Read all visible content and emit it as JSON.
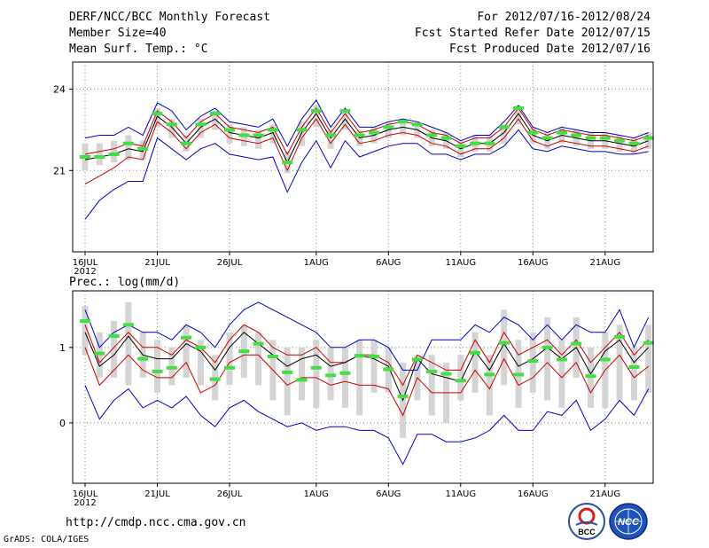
{
  "header": {
    "title": "DERF/NCC/BCC Monthly Forecast",
    "member_size": "Member Size=40",
    "variable1": "Mean Surf. Temp.: °C",
    "period": "For 2012/07/16-2012/08/24",
    "started": "Fcst Started Refer Date 2012/07/15",
    "produced": "Fcst Produced Date 2012/07/16"
  },
  "footer": {
    "url": "http://cmdp.ncc.cma.gov.cn",
    "credit": "GrADS: COLA/IGES"
  },
  "logos": {
    "left_text": "BCC",
    "right_text": "NCC"
  },
  "colors": {
    "envelope": "#0000cc",
    "inner": "#cc0000",
    "mean": "#000000",
    "bar": "#d4d4d4",
    "marker": "#44dd44",
    "grid": "#888888"
  },
  "chart_data": [
    {
      "type": "line",
      "title": "Mean Surf. Temp.: °C",
      "x_tick_labels": [
        "16JUL",
        "21JUL",
        "26JUL",
        "1AUG",
        "6AUG",
        "11AUG",
        "16AUG",
        "21AUG"
      ],
      "x_tick_days": [
        1,
        6,
        11,
        17,
        22,
        27,
        32,
        37
      ],
      "x_sublabel": "2012",
      "ylim": [
        18.0,
        25.0
      ],
      "y_ticks": [
        21,
        24
      ],
      "days": [
        1,
        2,
        3,
        4,
        5,
        6,
        7,
        8,
        9,
        10,
        11,
        12,
        13,
        14,
        15,
        16,
        17,
        18,
        19,
        20,
        21,
        22,
        23,
        24,
        25,
        26,
        27,
        28,
        29,
        30,
        31,
        32,
        33,
        34,
        35,
        36,
        37,
        38,
        39,
        40
      ],
      "series": [
        {
          "name": "max",
          "values": [
            22.2,
            22.3,
            22.3,
            22.6,
            22.3,
            23.5,
            23.2,
            22.5,
            23.0,
            23.3,
            22.8,
            22.7,
            22.6,
            22.9,
            21.9,
            22.9,
            23.6,
            22.6,
            23.3,
            22.6,
            22.6,
            22.8,
            22.9,
            22.8,
            22.6,
            22.4,
            22.1,
            22.3,
            22.3,
            22.8,
            23.4,
            22.6,
            22.4,
            22.6,
            22.5,
            22.4,
            22.4,
            22.3,
            22.2,
            22.4
          ]
        },
        {
          "name": "p90",
          "values": [
            21.6,
            21.7,
            21.8,
            22.0,
            21.9,
            23.2,
            22.8,
            22.2,
            22.8,
            23.1,
            22.6,
            22.5,
            22.4,
            22.6,
            21.6,
            22.6,
            23.3,
            22.4,
            23.1,
            22.4,
            22.5,
            22.7,
            22.8,
            22.7,
            22.4,
            22.3,
            22.0,
            22.2,
            22.2,
            22.6,
            23.3,
            22.5,
            22.3,
            22.5,
            22.4,
            22.3,
            22.3,
            22.2,
            22.1,
            22.3
          ]
        },
        {
          "name": "mean",
          "values": [
            21.4,
            21.5,
            21.6,
            21.8,
            21.7,
            23.0,
            22.6,
            22.0,
            22.6,
            22.9,
            22.4,
            22.3,
            22.2,
            22.4,
            21.3,
            22.4,
            23.1,
            22.2,
            22.9,
            22.2,
            22.3,
            22.5,
            22.6,
            22.5,
            22.2,
            22.1,
            21.8,
            22.0,
            22.0,
            22.4,
            23.1,
            22.3,
            22.1,
            22.3,
            22.2,
            22.1,
            22.1,
            22.0,
            21.9,
            22.1
          ]
        },
        {
          "name": "p10",
          "values": [
            20.5,
            20.8,
            21.1,
            21.5,
            21.4,
            22.8,
            22.4,
            21.8,
            22.4,
            22.7,
            22.2,
            22.1,
            22.0,
            22.2,
            21.0,
            22.2,
            22.9,
            22.0,
            22.7,
            22.0,
            22.1,
            22.3,
            22.4,
            22.3,
            22.0,
            21.9,
            21.6,
            21.8,
            21.8,
            22.2,
            22.9,
            22.1,
            21.9,
            22.1,
            22.0,
            21.9,
            21.9,
            21.8,
            21.7,
            21.9
          ]
        },
        {
          "name": "min",
          "values": [
            19.2,
            19.9,
            20.3,
            20.6,
            20.6,
            22.2,
            21.8,
            21.4,
            21.8,
            22.0,
            21.6,
            21.5,
            21.4,
            21.5,
            20.2,
            21.3,
            22.1,
            21.1,
            22.1,
            21.5,
            21.7,
            21.9,
            22.0,
            22.0,
            21.6,
            21.6,
            21.4,
            21.6,
            21.6,
            21.9,
            22.5,
            21.8,
            21.7,
            21.9,
            21.8,
            21.7,
            21.7,
            21.6,
            21.6,
            21.7
          ]
        }
      ],
      "bars_low": [
        21.0,
        21.2,
        21.3,
        21.4,
        21.4,
        22.6,
        22.2,
        21.7,
        22.2,
        22.5,
        22.0,
        21.9,
        21.8,
        22.0,
        20.9,
        21.9,
        22.6,
        21.8,
        22.5,
        21.9,
        22.0,
        22.2,
        22.3,
        22.2,
        21.9,
        21.8,
        21.5,
        21.7,
        21.7,
        22.0,
        22.7,
        22.0,
        21.8,
        22.0,
        21.9,
        21.8,
        21.8,
        21.7,
        21.6,
        21.8
      ],
      "bars_high": [
        22.0,
        22.0,
        22.1,
        22.3,
        22.1,
        23.3,
        22.9,
        22.3,
        22.9,
        23.2,
        22.7,
        22.6,
        22.5,
        22.7,
        21.7,
        22.8,
        23.4,
        22.5,
        23.2,
        22.5,
        22.6,
        22.8,
        22.9,
        22.8,
        22.5,
        22.4,
        22.1,
        22.3,
        22.3,
        22.7,
        23.4,
        22.6,
        22.4,
        22.6,
        22.5,
        22.4,
        22.4,
        22.3,
        22.2,
        22.4
      ],
      "markers": [
        21.5,
        21.5,
        21.6,
        22.0,
        21.8,
        23.1,
        22.7,
        22.0,
        22.7,
        23.1,
        22.5,
        22.3,
        22.3,
        22.5,
        21.3,
        22.5,
        23.2,
        22.3,
        23.2,
        22.3,
        22.4,
        22.6,
        22.8,
        22.7,
        22.3,
        22.2,
        21.9,
        22.0,
        22.0,
        22.6,
        23.3,
        22.4,
        22.2,
        22.4,
        22.3,
        22.2,
        22.2,
        22.1,
        22.0,
        22.2
      ]
    },
    {
      "type": "line",
      "title": "Prec.: log(mm/d)",
      "x_tick_labels": [
        "16JUL",
        "21JUL",
        "26JUL",
        "1AUG",
        "6AUG",
        "11AUG",
        "16AUG",
        "21AUG"
      ],
      "x_tick_days": [
        1,
        6,
        11,
        17,
        22,
        27,
        32,
        37
      ],
      "x_sublabel": "2012",
      "ylim": [
        -0.8,
        1.75
      ],
      "y_ticks": [
        0,
        1
      ],
      "days": [
        1,
        2,
        3,
        4,
        5,
        6,
        7,
        8,
        9,
        10,
        11,
        12,
        13,
        14,
        15,
        16,
        17,
        18,
        19,
        20,
        21,
        22,
        23,
        24,
        25,
        26,
        27,
        28,
        29,
        30,
        31,
        32,
        33,
        34,
        35,
        36,
        37,
        38,
        39,
        40
      ],
      "series": [
        {
          "name": "max",
          "values": [
            1.5,
            1.0,
            1.2,
            1.3,
            1.2,
            1.2,
            1.1,
            1.3,
            1.2,
            1.0,
            1.3,
            1.5,
            1.6,
            1.5,
            1.4,
            1.3,
            1.2,
            1.0,
            1.0,
            1.1,
            1.1,
            1.0,
            0.7,
            0.7,
            1.1,
            1.1,
            1.1,
            1.3,
            1.2,
            1.4,
            1.3,
            1.1,
            1.3,
            1.1,
            1.3,
            1.2,
            1.2,
            1.5,
            1.0,
            1.4
          ]
        },
        {
          "name": "p90",
          "values": [
            1.3,
            0.8,
            1.0,
            1.2,
            1.0,
            1.0,
            0.9,
            1.1,
            1.0,
            0.8,
            1.1,
            1.3,
            1.2,
            1.0,
            0.9,
            0.9,
            1.0,
            0.8,
            0.8,
            0.9,
            0.9,
            0.8,
            0.5,
            0.9,
            0.8,
            0.7,
            0.7,
            1.1,
            0.8,
            1.2,
            0.9,
            1.0,
            1.1,
            0.9,
            1.1,
            0.8,
            1.0,
            1.2,
            0.9,
            1.1
          ]
        },
        {
          "name": "mean",
          "values": [
            1.2,
            0.75,
            0.9,
            1.15,
            0.9,
            0.85,
            0.85,
            1.05,
            0.95,
            0.7,
            1.0,
            1.2,
            1.05,
            0.9,
            0.75,
            0.85,
            0.9,
            0.75,
            0.8,
            0.9,
            0.85,
            0.75,
            0.3,
            0.85,
            0.65,
            0.6,
            0.55,
            0.95,
            0.7,
            1.05,
            0.75,
            0.85,
            1.0,
            0.85,
            1.0,
            0.65,
            0.95,
            1.1,
            0.8,
            1.0
          ]
        },
        {
          "name": "p10",
          "values": [
            1.0,
            0.5,
            0.7,
            0.9,
            0.7,
            0.6,
            0.6,
            0.8,
            0.4,
            0.5,
            0.8,
            0.9,
            0.9,
            0.7,
            0.5,
            0.6,
            0.6,
            0.5,
            0.55,
            0.5,
            0.5,
            0.45,
            0.1,
            0.6,
            0.4,
            0.4,
            0.4,
            0.7,
            0.45,
            0.85,
            0.5,
            0.6,
            0.8,
            0.6,
            0.8,
            0.4,
            0.7,
            0.9,
            0.6,
            0.75
          ]
        },
        {
          "name": "min",
          "values": [
            0.5,
            0.05,
            0.3,
            0.45,
            0.2,
            0.3,
            0.2,
            0.35,
            0.1,
            -0.05,
            0.2,
            0.3,
            0.15,
            0.05,
            -0.05,
            0.0,
            -0.1,
            -0.05,
            -0.05,
            -0.1,
            -0.1,
            -0.2,
            -0.55,
            -0.15,
            -0.15,
            -0.25,
            -0.25,
            -0.2,
            -0.1,
            0.1,
            -0.1,
            -0.1,
            0.15,
            0.1,
            0.3,
            -0.1,
            0.05,
            0.3,
            0.1,
            0.45
          ]
        }
      ],
      "bars_low": [
        0.9,
        0.6,
        0.6,
        0.5,
        0.6,
        0.4,
        0.5,
        0.6,
        0.5,
        0.3,
        0.5,
        0.6,
        0.5,
        0.3,
        0.1,
        0.3,
        0.2,
        0.3,
        0.2,
        0.1,
        0.4,
        0.4,
        -0.2,
        0.3,
        0.1,
        0.0,
        0.3,
        0.4,
        0.1,
        0.5,
        0.2,
        0.4,
        0.3,
        0.2,
        0.6,
        0.2,
        0.2,
        0.3,
        0.3,
        0.4
      ],
      "bars_high": [
        1.55,
        1.2,
        1.35,
        1.6,
        1.2,
        1.1,
        1.0,
        1.3,
        1.1,
        0.9,
        1.2,
        1.3,
        1.2,
        1.1,
        1.0,
        1.0,
        1.1,
        1.0,
        1.0,
        1.1,
        1.1,
        1.0,
        0.8,
        0.9,
        0.9,
        0.8,
        0.9,
        1.2,
        0.9,
        1.5,
        1.1,
        1.2,
        1.4,
        1.1,
        1.4,
        1.0,
        1.2,
        1.3,
        1.0,
        1.3
      ],
      "markers": [
        1.35,
        0.92,
        1.15,
        1.3,
        0.85,
        0.68,
        0.73,
        1.13,
        1.0,
        0.58,
        0.73,
        0.95,
        1.05,
        0.88,
        0.67,
        0.57,
        0.73,
        0.63,
        0.66,
        0.89,
        0.88,
        0.71,
        0.35,
        0.84,
        0.68,
        0.65,
        0.56,
        0.93,
        0.64,
        1.06,
        0.64,
        0.82,
        1.0,
        0.84,
        1.05,
        0.62,
        0.84,
        1.14,
        0.74,
        1.06
      ]
    }
  ]
}
